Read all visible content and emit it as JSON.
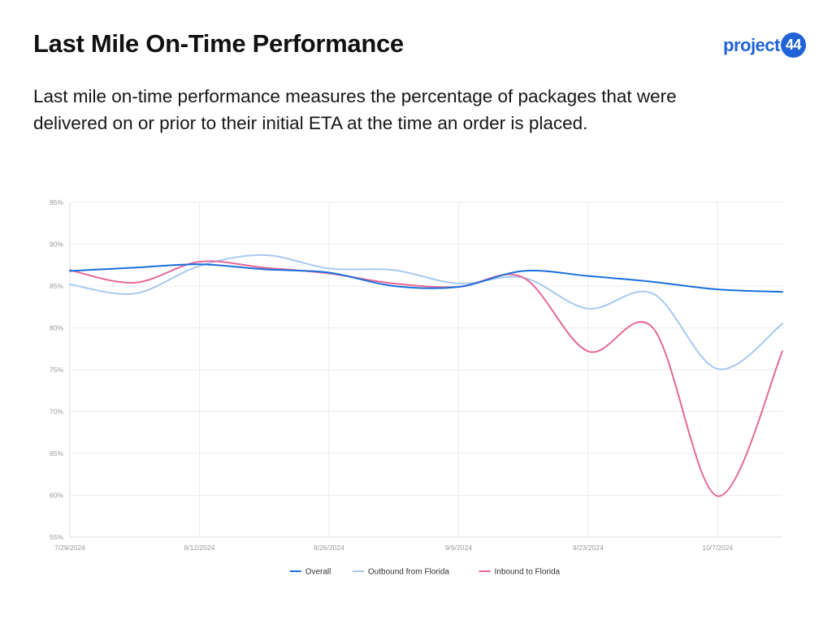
{
  "header": {
    "title": "Last Mile On-Time Performance",
    "subtitle": "Last mile on-time performance measures the percentage of packages that were delivered on or prior to their initial ETA at the time an order is placed.",
    "logo_text": "project",
    "logo_badge": "44"
  },
  "colors": {
    "brand": "#1f63d6"
  },
  "chart_data": {
    "type": "line",
    "title": "",
    "xlabel": "",
    "ylabel": "",
    "ylim": [
      55,
      95
    ],
    "y_ticks": [
      "95%",
      "90%",
      "85%",
      "80%",
      "75%",
      "70%",
      "65%",
      "60%",
      "55%"
    ],
    "x_ticks": [
      "7/29/2024",
      "8/12/2024",
      "8/26/2024",
      "9/9/2024",
      "9/23/2024",
      "10/7/2024"
    ],
    "x": [
      "7/29/2024",
      "8/5/2024",
      "8/12/2024",
      "8/19/2024",
      "8/26/2024",
      "9/2/2024",
      "9/9/2024",
      "9/16/2024",
      "9/23/2024",
      "9/30/2024",
      "10/7/2024",
      "10/14/2024"
    ],
    "grid": true,
    "legend_position": "bottom",
    "series": [
      {
        "name": "Overall",
        "color": "#1a6fdb",
        "values": [
          86.8,
          87.2,
          87.6,
          87.0,
          86.6,
          85.0,
          84.9,
          86.8,
          86.2,
          85.5,
          84.6,
          84.3
        ]
      },
      {
        "name": "Outbound from Florida",
        "color": "#a7c9f0",
        "values": [
          85.2,
          84.1,
          87.4,
          88.7,
          87.1,
          86.9,
          85.3,
          86.0,
          82.3,
          84.1,
          75.1,
          80.5
        ]
      },
      {
        "name": "Inbound to Florida",
        "color": "#e4689a",
        "values": [
          86.9,
          85.4,
          87.9,
          87.2,
          86.5,
          85.3,
          84.9,
          86.0,
          77.2,
          80.0,
          59.9,
          77.2
        ]
      }
    ]
  }
}
